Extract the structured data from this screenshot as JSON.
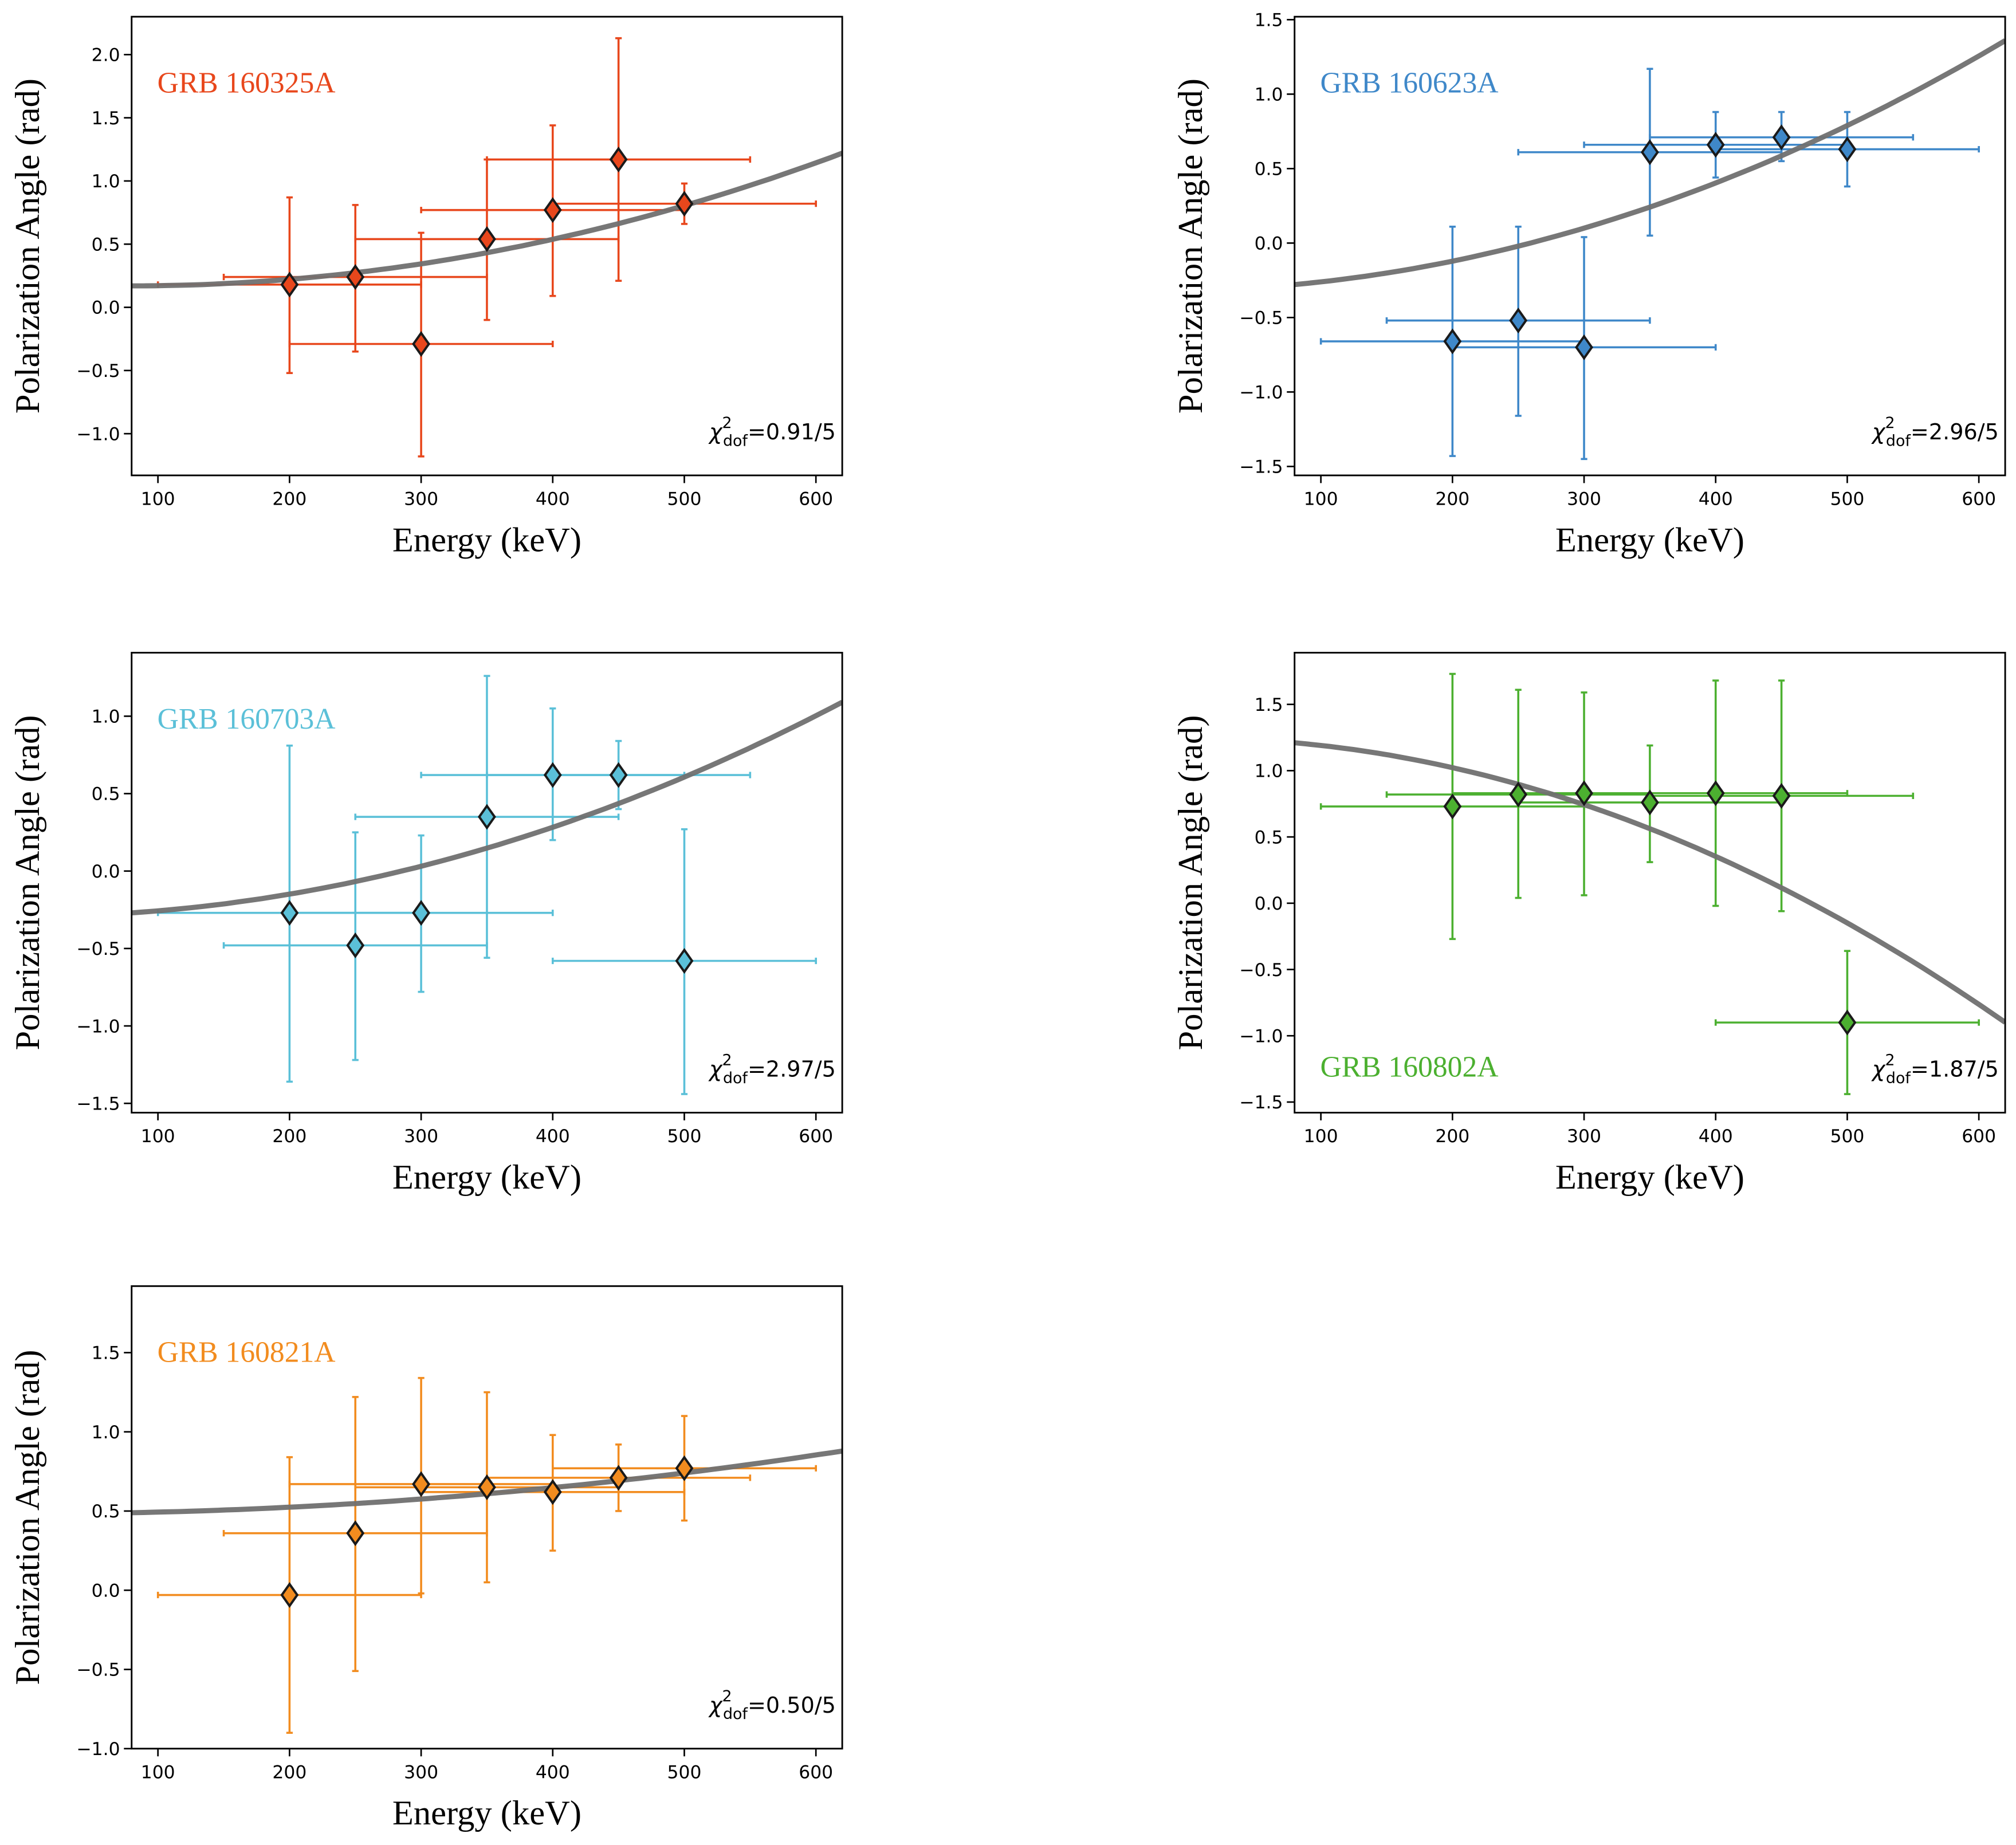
{
  "chart_data": [
    {
      "type": "scatter",
      "title": "GRB 160325A",
      "title_position": "top-left",
      "color": "#e8471c",
      "xlabel": "Energy (keV)",
      "ylabel": "Polarization Angle (rad)",
      "xlim": [
        80,
        620
      ],
      "ylim": [
        -1.33,
        2.3
      ],
      "xticks": [
        "100",
        "200",
        "300",
        "400",
        "500",
        "600"
      ],
      "yticks": [
        "−1.0",
        "−0.5",
        "0.0",
        "0.5",
        "1.0",
        "1.5",
        "2.0"
      ],
      "ytick_values": [
        -1.0,
        -0.5,
        0.0,
        0.5,
        1.0,
        1.5,
        2.0
      ],
      "points": [
        {
          "x": 200,
          "y": 0.18,
          "xlo": 100,
          "xhi": 300,
          "ylo": -0.52,
          "yhi": 0.87
        },
        {
          "x": 250,
          "y": 0.24,
          "xlo": 150,
          "xhi": 350,
          "ylo": -0.35,
          "yhi": 0.81
        },
        {
          "x": 300,
          "y": -0.29,
          "xlo": 200,
          "xhi": 400,
          "ylo": -1.18,
          "yhi": 0.59
        },
        {
          "x": 350,
          "y": 0.54,
          "xlo": 250,
          "xhi": 450,
          "ylo": -0.1,
          "yhi": 1.17
        },
        {
          "x": 400,
          "y": 0.77,
          "xlo": 300,
          "xhi": 500,
          "ylo": 0.09,
          "yhi": 1.44
        },
        {
          "x": 450,
          "y": 1.17,
          "xlo": 350,
          "xhi": 550,
          "ylo": 0.21,
          "yhi": 2.13
        },
        {
          "x": 500,
          "y": 0.82,
          "xlo": 400,
          "xhi": 600,
          "ylo": 0.66,
          "yhi": 0.98
        }
      ],
      "fit": {
        "model": "quadratic",
        "c0": 0.193,
        "c1": -0.000576,
        "c2": 3.6e-06,
        "color": "#707070"
      },
      "chi": {
        "symbol": "χ",
        "sup": "2",
        "sub": "dof",
        "value": "=0.91/5"
      }
    },
    {
      "type": "scatter",
      "title": "GRB 160623A",
      "title_position": "top-left",
      "color": "#3f88c9",
      "xlabel": "Energy (keV)",
      "ylabel": "Polarization Angle (rad)",
      "xlim": [
        80,
        620
      ],
      "ylim": [
        -1.56,
        1.52
      ],
      "xticks": [
        "100",
        "200",
        "300",
        "400",
        "500",
        "600"
      ],
      "yticks": [
        "−1.5",
        "−1.0",
        "−0.5",
        "0.0",
        "0.5",
        "1.0",
        "1.5"
      ],
      "ytick_values": [
        -1.5,
        -1.0,
        -0.5,
        0.0,
        0.5,
        1.0,
        1.5
      ],
      "points": [
        {
          "x": 200,
          "y": -0.66,
          "xlo": 100,
          "xhi": 300,
          "ylo": -1.43,
          "yhi": 0.11
        },
        {
          "x": 250,
          "y": -0.52,
          "xlo": 150,
          "xhi": 350,
          "ylo": -1.16,
          "yhi": 0.11
        },
        {
          "x": 300,
          "y": -0.7,
          "xlo": 200,
          "xhi": 400,
          "ylo": -1.45,
          "yhi": 0.04
        },
        {
          "x": 350,
          "y": 0.61,
          "xlo": 250,
          "xhi": 450,
          "ylo": 0.05,
          "yhi": 1.17
        },
        {
          "x": 400,
          "y": 0.66,
          "xlo": 300,
          "xhi": 500,
          "ylo": 0.44,
          "yhi": 0.88
        },
        {
          "x": 450,
          "y": 0.71,
          "xlo": 350,
          "xhi": 550,
          "ylo": 0.55,
          "yhi": 0.88
        },
        {
          "x": 500,
          "y": 0.63,
          "xlo": 400,
          "xhi": 600,
          "ylo": 0.38,
          "yhi": 0.88
        }
      ],
      "fit": {
        "model": "quadratic",
        "c0": -0.318,
        "c1": 0.000164,
        "c2": 4.1e-06,
        "color": "#707070"
      },
      "chi": {
        "symbol": "χ",
        "sup": "2",
        "sub": "dof",
        "value": "=2.96/5"
      }
    },
    {
      "type": "scatter",
      "title": "GRB 160703A",
      "title_position": "top-left",
      "color": "#5bc0d8",
      "xlabel": "Energy (keV)",
      "ylabel": "Polarization Angle (rad)",
      "xlim": [
        80,
        620
      ],
      "ylim": [
        -1.56,
        1.41
      ],
      "xticks": [
        "100",
        "200",
        "300",
        "400",
        "500",
        "600"
      ],
      "yticks": [
        "−1.5",
        "−1.0",
        "−0.5",
        "0.0",
        "0.5",
        "1.0"
      ],
      "ytick_values": [
        -1.5,
        -1.0,
        -0.5,
        0.0,
        0.5,
        1.0
      ],
      "points": [
        {
          "x": 200,
          "y": -0.27,
          "xlo": 100,
          "xhi": 300,
          "ylo": -1.36,
          "yhi": 0.81
        },
        {
          "x": 250,
          "y": -0.48,
          "xlo": 150,
          "xhi": 350,
          "ylo": -1.22,
          "yhi": 0.25
        },
        {
          "x": 300,
          "y": -0.27,
          "xlo": 200,
          "xhi": 400,
          "ylo": -0.78,
          "yhi": 0.23
        },
        {
          "x": 350,
          "y": 0.35,
          "xlo": 250,
          "xhi": 450,
          "ylo": -0.56,
          "yhi": 1.26
        },
        {
          "x": 400,
          "y": 0.62,
          "xlo": 300,
          "xhi": 500,
          "ylo": 0.2,
          "yhi": 1.05
        },
        {
          "x": 450,
          "y": 0.62,
          "xlo": 350,
          "xhi": 550,
          "ylo": 0.4,
          "yhi": 0.84
        },
        {
          "x": 500,
          "y": -0.58,
          "xlo": 400,
          "xhi": 600,
          "ylo": -1.44,
          "yhi": 0.27
        }
      ],
      "fit": {
        "model": "quadratic",
        "c0": -0.293,
        "c1": 0,
        "c2": 3.6e-06,
        "color": "#707070"
      },
      "chi": {
        "symbol": "χ",
        "sup": "2",
        "sub": "dof",
        "value": "=2.97/5"
      }
    },
    {
      "type": "scatter",
      "title": "GRB 160802A",
      "title_position": "bottom-left",
      "color": "#4cb030",
      "xlabel": "Energy (keV)",
      "ylabel": "Polarization Angle (rad)",
      "xlim": [
        80,
        620
      ],
      "ylim": [
        -1.58,
        1.89
      ],
      "xticks": [
        "100",
        "200",
        "300",
        "400",
        "500",
        "600"
      ],
      "yticks": [
        "−1.5",
        "−1.0",
        "−0.5",
        "0.0",
        "0.5",
        "1.0",
        "1.5"
      ],
      "ytick_values": [
        -1.5,
        -1.0,
        -0.5,
        0.0,
        0.5,
        1.0,
        1.5
      ],
      "points": [
        {
          "x": 200,
          "y": 0.73,
          "xlo": 100,
          "xhi": 300,
          "ylo": -0.27,
          "yhi": 1.73
        },
        {
          "x": 250,
          "y": 0.82,
          "xlo": 150,
          "xhi": 350,
          "ylo": 0.04,
          "yhi": 1.61
        },
        {
          "x": 300,
          "y": 0.83,
          "xlo": 200,
          "xhi": 400,
          "ylo": 0.06,
          "yhi": 1.59
        },
        {
          "x": 350,
          "y": 0.76,
          "xlo": 250,
          "xhi": 450,
          "ylo": 0.31,
          "yhi": 1.19
        },
        {
          "x": 400,
          "y": 0.83,
          "xlo": 300,
          "xhi": 500,
          "ylo": -0.02,
          "yhi": 1.68
        },
        {
          "x": 450,
          "y": 0.81,
          "xlo": 350,
          "xhi": 550,
          "ylo": -0.06,
          "yhi": 1.68
        },
        {
          "x": 500,
          "y": -0.9,
          "xlo": 400,
          "xhi": 600,
          "ylo": -1.44,
          "yhi": -0.36
        }
      ],
      "fit": {
        "model": "quadratic",
        "c0": 1.246,
        "c1": 0,
        "c2": -5.58e-06,
        "color": "#707070"
      },
      "chi": {
        "symbol": "χ",
        "sup": "2",
        "sub": "dof",
        "value": "=1.87/5"
      }
    },
    {
      "type": "scatter",
      "title": "GRB 160821A",
      "title_position": "top-left",
      "color": "#f28c1f",
      "xlabel": "Energy (keV)",
      "ylabel": "Polarization Angle (rad)",
      "xlim": [
        80,
        620
      ],
      "ylim": [
        -1.0,
        1.92
      ],
      "xticks": [
        "100",
        "200",
        "300",
        "400",
        "500",
        "600"
      ],
      "yticks": [
        "−1.0",
        "−0.5",
        "0.0",
        "0.5",
        "1.0",
        "1.5"
      ],
      "ytick_values": [
        -1.0,
        -0.5,
        0.0,
        0.5,
        1.0,
        1.5
      ],
      "points": [
        {
          "x": 200,
          "y": -0.03,
          "xlo": 100,
          "xhi": 300,
          "ylo": -0.9,
          "yhi": 0.84
        },
        {
          "x": 250,
          "y": 0.36,
          "xlo": 150,
          "xhi": 350,
          "ylo": -0.51,
          "yhi": 1.22
        },
        {
          "x": 300,
          "y": 0.67,
          "xlo": 200,
          "xhi": 400,
          "ylo": -0.02,
          "yhi": 1.34
        },
        {
          "x": 350,
          "y": 0.65,
          "xlo": 250,
          "xhi": 450,
          "ylo": 0.05,
          "yhi": 1.25
        },
        {
          "x": 400,
          "y": 0.62,
          "xlo": 300,
          "xhi": 500,
          "ylo": 0.25,
          "yhi": 0.98
        },
        {
          "x": 450,
          "y": 0.71,
          "xlo": 350,
          "xhi": 550,
          "ylo": 0.5,
          "yhi": 0.92
        },
        {
          "x": 500,
          "y": 0.77,
          "xlo": 400,
          "xhi": 600,
          "ylo": 0.44,
          "yhi": 1.1
        }
      ],
      "fit": {
        "model": "quadratic",
        "c0": 0.483,
        "c1": 0,
        "c2": 1.03e-06,
        "color": "#707070"
      },
      "chi": {
        "symbol": "χ",
        "sup": "2",
        "sub": "dof",
        "value": "=0.50/5"
      }
    }
  ]
}
